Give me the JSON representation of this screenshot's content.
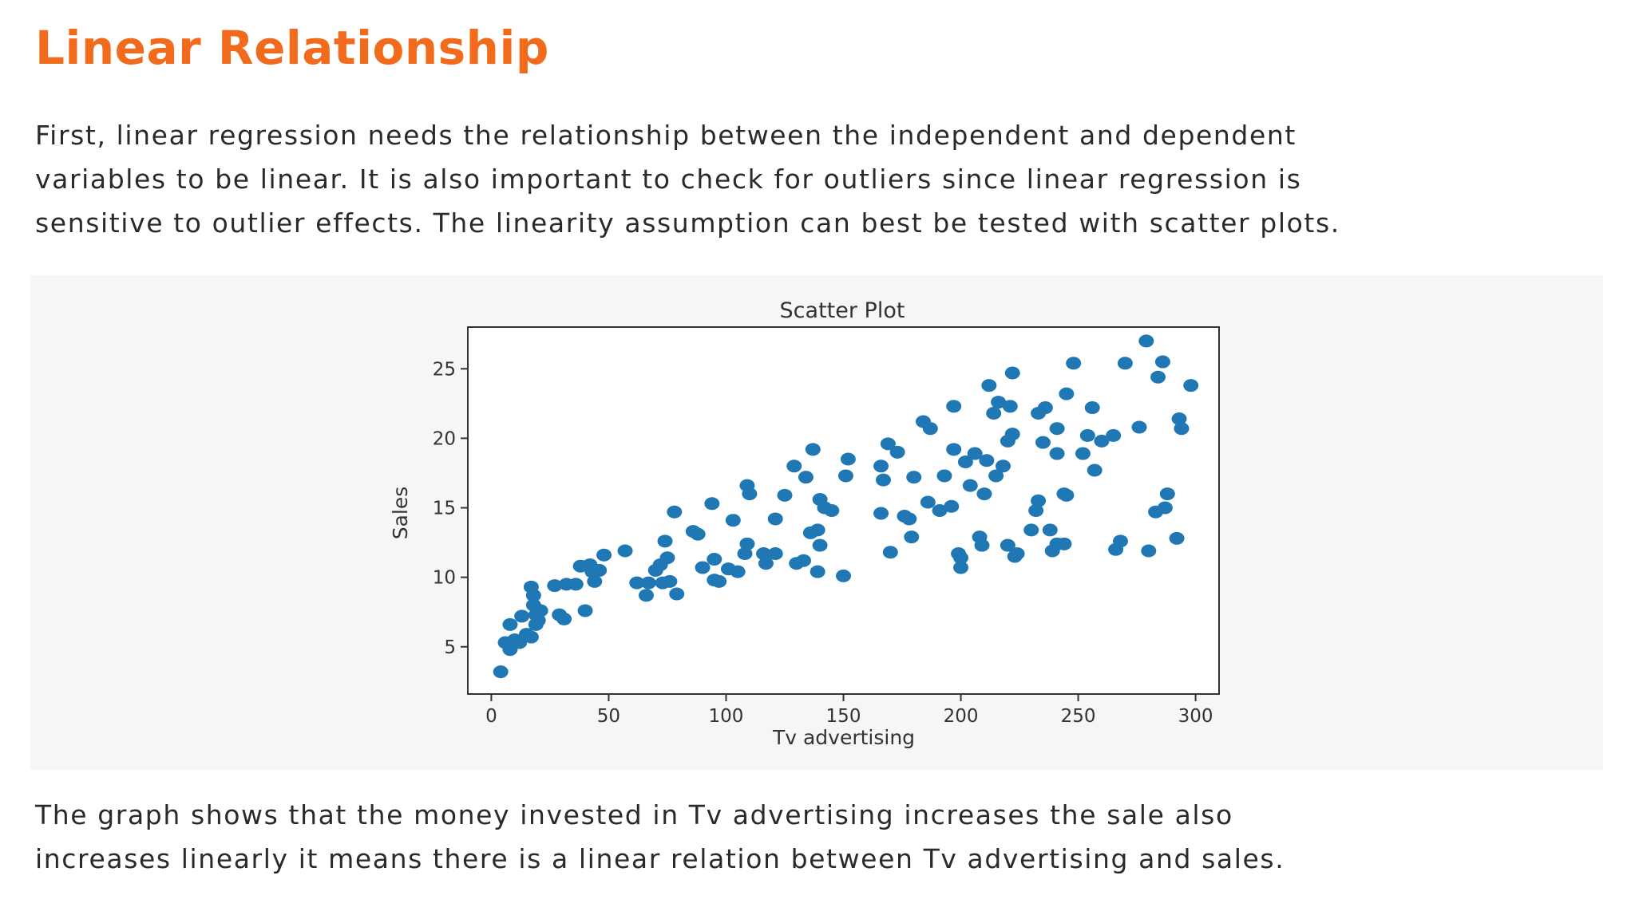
{
  "page": {
    "heading": "Linear Relationship",
    "intro_line1": "First, linear regression needs the relationship between the independent and dependent",
    "intro_line2": "variables to be linear. It is also important to check for outliers since linear regression is",
    "intro_line3": "sensitive to outlier effects. The linearity assumption can best be tested with scatter plots.",
    "outro_line1": "The graph shows that the money invested in Tv advertising increases the sale also",
    "outro_line2": "increases linearly it means there is a linear relation between Tv advertising and sales.",
    "colors": {
      "heading": "#f26a1b",
      "marker": "#1f77b4"
    }
  },
  "chart_data": {
    "type": "scatter",
    "title": "Scatter Plot",
    "xlabel": "Tv advertising",
    "ylabel": "Sales",
    "xlim": [
      -10,
      310
    ],
    "ylim": [
      1.6,
      28
    ],
    "xticks": [
      0,
      50,
      100,
      150,
      200,
      250,
      300
    ],
    "yticks": [
      5,
      10,
      15,
      20,
      25
    ],
    "grid": false,
    "legend": "none",
    "points": [
      [
        4,
        3.2
      ],
      [
        6,
        5.3
      ],
      [
        8,
        4.8
      ],
      [
        8,
        6.6
      ],
      [
        10,
        5.5
      ],
      [
        12,
        5.3
      ],
      [
        13,
        7.2
      ],
      [
        15,
        5.9
      ],
      [
        17,
        5.7
      ],
      [
        18,
        8.0
      ],
      [
        17,
        9.3
      ],
      [
        18,
        8.7
      ],
      [
        19,
        6.6
      ],
      [
        19,
        7.3
      ],
      [
        20,
        6.9
      ],
      [
        21,
        7.6
      ],
      [
        27,
        9.4
      ],
      [
        29,
        7.3
      ],
      [
        31,
        7.0
      ],
      [
        32,
        9.5
      ],
      [
        36,
        9.5
      ],
      [
        38,
        10.8
      ],
      [
        40,
        7.6
      ],
      [
        42,
        10.9
      ],
      [
        43,
        10.4
      ],
      [
        44,
        9.7
      ],
      [
        46,
        10.5
      ],
      [
        48,
        11.6
      ],
      [
        57,
        11.9
      ],
      [
        62,
        9.6
      ],
      [
        66,
        8.7
      ],
      [
        67,
        9.6
      ],
      [
        70,
        10.5
      ],
      [
        72,
        10.9
      ],
      [
        73,
        9.6
      ],
      [
        74,
        12.6
      ],
      [
        75,
        11.4
      ],
      [
        76,
        9.7
      ],
      [
        78,
        14.7
      ],
      [
        79,
        8.8
      ],
      [
        86,
        13.3
      ],
      [
        88,
        13.1
      ],
      [
        90,
        10.7
      ],
      [
        94,
        15.3
      ],
      [
        95,
        9.8
      ],
      [
        95,
        11.3
      ],
      [
        97,
        9.7
      ],
      [
        101,
        10.6
      ],
      [
        103,
        14.1
      ],
      [
        105,
        10.4
      ],
      [
        108,
        11.7
      ],
      [
        109,
        16.6
      ],
      [
        109,
        12.4
      ],
      [
        110,
        16.0
      ],
      [
        116,
        11.7
      ],
      [
        117,
        11.0
      ],
      [
        121,
        11.7
      ],
      [
        121,
        14.2
      ],
      [
        125,
        15.9
      ],
      [
        129,
        18.0
      ],
      [
        130,
        11.0
      ],
      [
        133,
        11.2
      ],
      [
        134,
        17.2
      ],
      [
        136,
        13.2
      ],
      [
        137,
        19.2
      ],
      [
        139,
        13.4
      ],
      [
        139,
        10.4
      ],
      [
        140,
        12.3
      ],
      [
        140,
        15.6
      ],
      [
        142,
        15.0
      ],
      [
        145,
        14.8
      ],
      [
        150,
        10.1
      ],
      [
        151,
        17.3
      ],
      [
        152,
        18.5
      ],
      [
        166,
        14.6
      ],
      [
        166,
        18.0
      ],
      [
        167,
        17.0
      ],
      [
        169,
        19.6
      ],
      [
        170,
        11.8
      ],
      [
        173,
        19.0
      ],
      [
        176,
        14.4
      ],
      [
        178,
        14.2
      ],
      [
        179,
        12.9
      ],
      [
        180,
        17.2
      ],
      [
        184,
        21.2
      ],
      [
        186,
        15.4
      ],
      [
        187,
        20.7
      ],
      [
        191,
        14.8
      ],
      [
        193,
        17.3
      ],
      [
        196,
        15.1
      ],
      [
        197,
        19.2
      ],
      [
        197,
        22.3
      ],
      [
        199,
        11.7
      ],
      [
        200,
        11.4
      ],
      [
        200,
        10.7
      ],
      [
        202,
        18.3
      ],
      [
        204,
        16.6
      ],
      [
        206,
        18.9
      ],
      [
        208,
        12.9
      ],
      [
        209,
        12.3
      ],
      [
        210,
        16.0
      ],
      [
        211,
        18.4
      ],
      [
        212,
        23.8
      ],
      [
        214,
        21.8
      ],
      [
        215,
        17.3
      ],
      [
        216,
        22.6
      ],
      [
        218,
        18.0
      ],
      [
        220,
        12.3
      ],
      [
        220,
        19.8
      ],
      [
        221,
        22.3
      ],
      [
        222,
        24.7
      ],
      [
        222,
        20.3
      ],
      [
        223,
        11.5
      ],
      [
        224,
        11.7
      ],
      [
        230,
        13.4
      ],
      [
        232,
        14.8
      ],
      [
        233,
        21.8
      ],
      [
        233,
        15.5
      ],
      [
        235,
        19.7
      ],
      [
        236,
        22.2
      ],
      [
        238,
        13.4
      ],
      [
        239,
        11.9
      ],
      [
        241,
        18.9
      ],
      [
        241,
        12.4
      ],
      [
        241,
        20.7
      ],
      [
        244,
        12.4
      ],
      [
        244,
        16.0
      ],
      [
        245,
        15.9
      ],
      [
        245,
        23.2
      ],
      [
        248,
        25.4
      ],
      [
        252,
        18.9
      ],
      [
        254,
        20.2
      ],
      [
        256,
        22.2
      ],
      [
        257,
        17.7
      ],
      [
        260,
        19.8
      ],
      [
        265,
        20.2
      ],
      [
        266,
        12.0
      ],
      [
        268,
        12.6
      ],
      [
        270,
        25.4
      ],
      [
        276,
        20.8
      ],
      [
        279,
        27.0
      ],
      [
        280,
        11.9
      ],
      [
        283,
        14.7
      ],
      [
        284,
        24.4
      ],
      [
        286,
        25.5
      ],
      [
        287,
        15.0
      ],
      [
        288,
        16.0
      ],
      [
        292,
        12.8
      ],
      [
        293,
        21.4
      ],
      [
        294,
        20.7
      ],
      [
        298,
        23.8
      ]
    ]
  }
}
